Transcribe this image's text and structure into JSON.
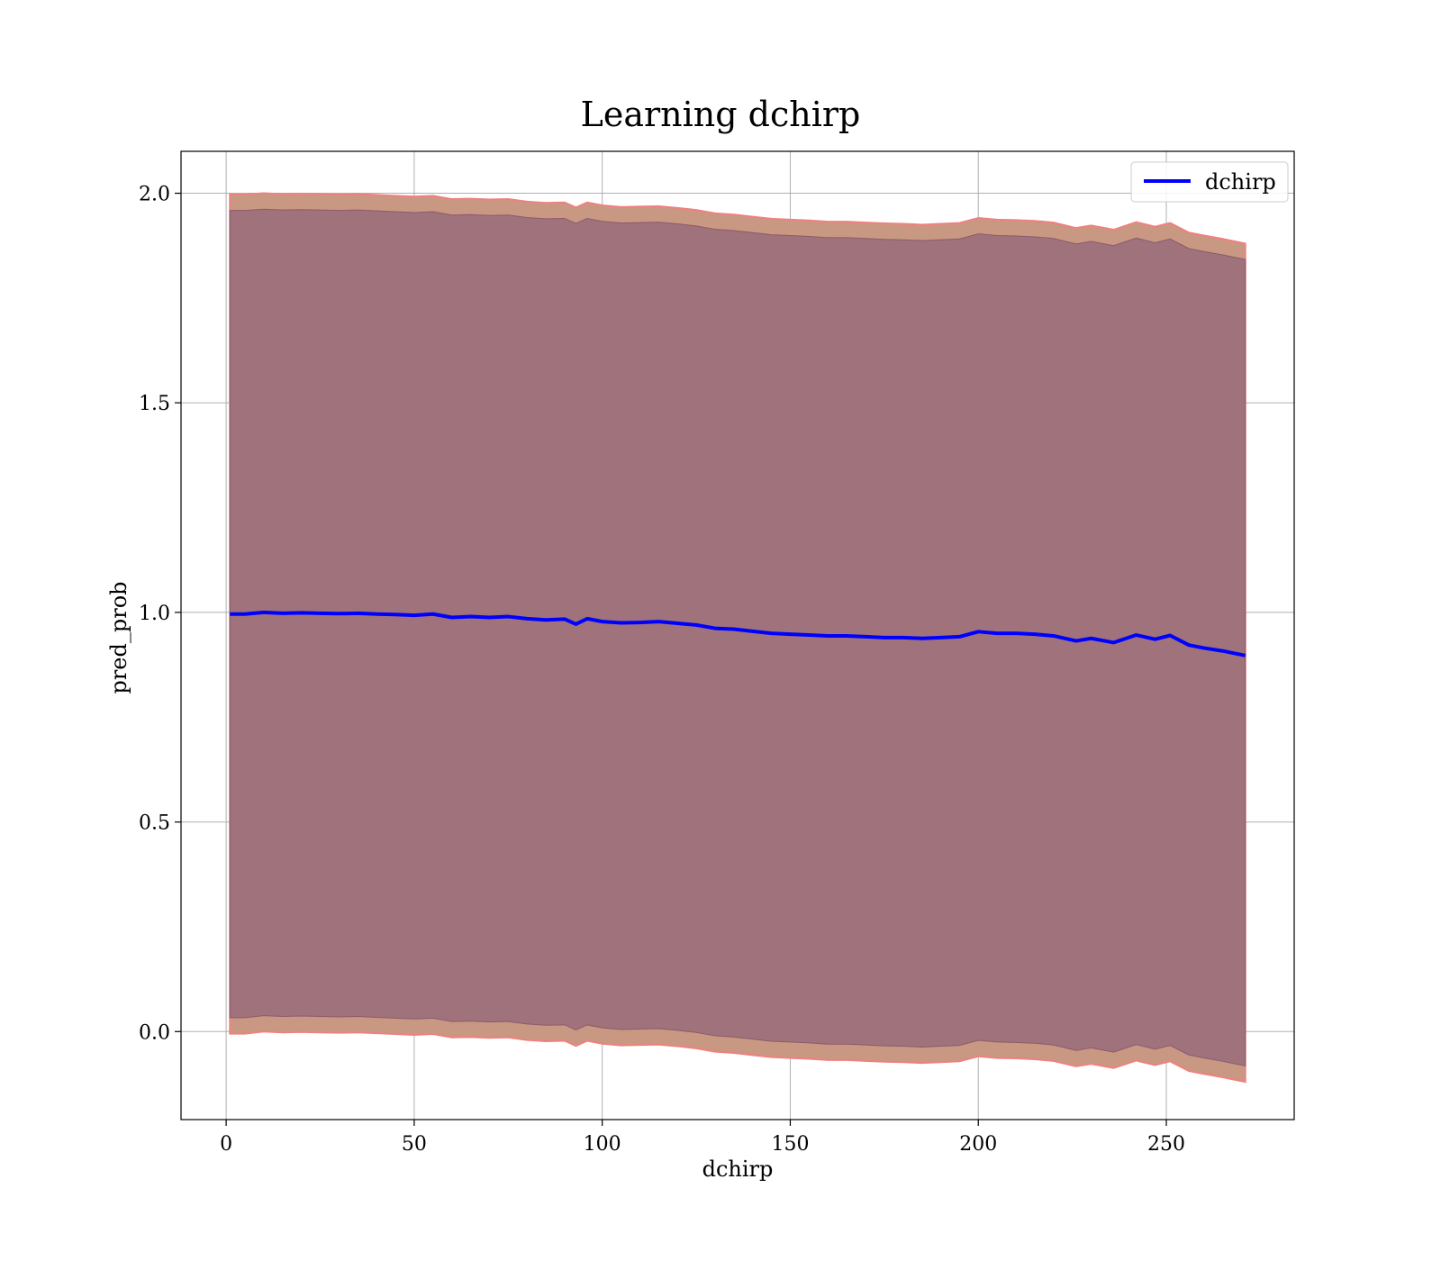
{
  "chart_data": {
    "type": "line",
    "title": "Learning dchirp",
    "xlabel": "dchirp",
    "ylabel": "pred_prob",
    "xlim": [
      -12,
      284
    ],
    "ylim": [
      -0.21,
      2.1
    ],
    "xticks": [
      0,
      50,
      100,
      150,
      200,
      250
    ],
    "yticks": [
      0.0,
      0.5,
      1.0,
      1.5,
      2.0
    ],
    "xtick_labels": [
      "0",
      "50",
      "100",
      "150",
      "200",
      "250"
    ],
    "ytick_labels": [
      "0.0",
      "0.5",
      "1.0",
      "1.5",
      "2.0"
    ],
    "grid": true,
    "legend": {
      "placement": "top-right",
      "entries": [
        "dchirp"
      ]
    },
    "colors": {
      "line": "#0000ff",
      "inner_band": "#a0727b",
      "outer_band": "#c89882",
      "outer_edge": "#f08080",
      "inner_edge": "#8c5a6e",
      "grid": "#b0b0b0"
    },
    "series": [
      {
        "name": "dchirp",
        "x": [
          1,
          5,
          10,
          15,
          20,
          25,
          30,
          35,
          40,
          45,
          50,
          55,
          60,
          65,
          70,
          75,
          80,
          85,
          90,
          93,
          96,
          100,
          105,
          110,
          115,
          120,
          125,
          130,
          135,
          140,
          145,
          150,
          155,
          160,
          165,
          170,
          175,
          180,
          185,
          190,
          195,
          200,
          205,
          210,
          215,
          220,
          226,
          230,
          236,
          242,
          247,
          251,
          256,
          260,
          265,
          271
        ],
        "y": [
          0.996,
          0.996,
          1.0,
          0.998,
          0.999,
          0.998,
          0.997,
          0.998,
          0.996,
          0.995,
          0.993,
          0.996,
          0.988,
          0.99,
          0.988,
          0.99,
          0.985,
          0.982,
          0.984,
          0.972,
          0.985,
          0.978,
          0.975,
          0.976,
          0.978,
          0.974,
          0.97,
          0.962,
          0.96,
          0.955,
          0.95,
          0.948,
          0.946,
          0.944,
          0.944,
          0.942,
          0.94,
          0.94,
          0.938,
          0.94,
          0.942,
          0.954,
          0.95,
          0.95,
          0.948,
          0.944,
          0.932,
          0.938,
          0.928,
          0.946,
          0.936,
          0.945,
          0.922,
          0.915,
          0.908,
          0.897
        ],
        "outer_band": {
          "upper": [
            1.997,
            1.997,
            2.0,
            1.998,
            1.999,
            1.998,
            1.997,
            1.998,
            1.996,
            1.994,
            1.992,
            1.994,
            1.986,
            1.987,
            1.985,
            1.986,
            1.98,
            1.977,
            1.978,
            1.966,
            1.978,
            1.971,
            1.967,
            1.968,
            1.969,
            1.965,
            1.96,
            1.952,
            1.949,
            1.944,
            1.939,
            1.937,
            1.935,
            1.932,
            1.932,
            1.93,
            1.928,
            1.927,
            1.925,
            1.927,
            1.929,
            1.941,
            1.937,
            1.936,
            1.934,
            1.93,
            1.917,
            1.923,
            1.913,
            1.931,
            1.92,
            1.929,
            1.906,
            1.899,
            1.891,
            1.88
          ],
          "lower": [
            -0.005,
            -0.005,
            0.0,
            -0.002,
            -0.001,
            -0.002,
            -0.003,
            -0.002,
            -0.004,
            -0.006,
            -0.008,
            -0.006,
            -0.014,
            -0.013,
            -0.015,
            -0.014,
            -0.02,
            -0.023,
            -0.022,
            -0.034,
            -0.022,
            -0.029,
            -0.033,
            -0.032,
            -0.031,
            -0.035,
            -0.04,
            -0.048,
            -0.051,
            -0.056,
            -0.061,
            -0.063,
            -0.065,
            -0.068,
            -0.068,
            -0.07,
            -0.072,
            -0.073,
            -0.075,
            -0.073,
            -0.071,
            -0.059,
            -0.063,
            -0.064,
            -0.066,
            -0.07,
            -0.083,
            -0.077,
            -0.087,
            -0.069,
            -0.08,
            -0.071,
            -0.094,
            -0.101,
            -0.109,
            -0.12
          ]
        },
        "inner_band": {
          "upper": [
            1.959,
            1.959,
            1.962,
            1.96,
            1.961,
            1.96,
            1.959,
            1.96,
            1.958,
            1.956,
            1.954,
            1.956,
            1.948,
            1.949,
            1.947,
            1.948,
            1.942,
            1.939,
            1.94,
            1.928,
            1.94,
            1.933,
            1.929,
            1.93,
            1.931,
            1.927,
            1.922,
            1.914,
            1.911,
            1.906,
            1.901,
            1.899,
            1.897,
            1.894,
            1.894,
            1.892,
            1.89,
            1.889,
            1.887,
            1.889,
            1.891,
            1.903,
            1.899,
            1.898,
            1.896,
            1.892,
            1.879,
            1.885,
            1.875,
            1.893,
            1.882,
            1.891,
            1.868,
            1.861,
            1.853,
            1.842
          ],
          "lower": [
            0.033,
            0.033,
            0.038,
            0.036,
            0.037,
            0.036,
            0.035,
            0.036,
            0.034,
            0.032,
            0.03,
            0.032,
            0.024,
            0.025,
            0.023,
            0.024,
            0.018,
            0.015,
            0.016,
            0.004,
            0.016,
            0.009,
            0.005,
            0.006,
            0.007,
            0.003,
            -0.002,
            -0.01,
            -0.013,
            -0.018,
            -0.023,
            -0.025,
            -0.027,
            -0.03,
            -0.03,
            -0.032,
            -0.034,
            -0.035,
            -0.037,
            -0.035,
            -0.033,
            -0.021,
            -0.025,
            -0.026,
            -0.028,
            -0.032,
            -0.045,
            -0.039,
            -0.049,
            -0.031,
            -0.042,
            -0.033,
            -0.056,
            -0.063,
            -0.071,
            -0.082
          ]
        }
      }
    ]
  }
}
